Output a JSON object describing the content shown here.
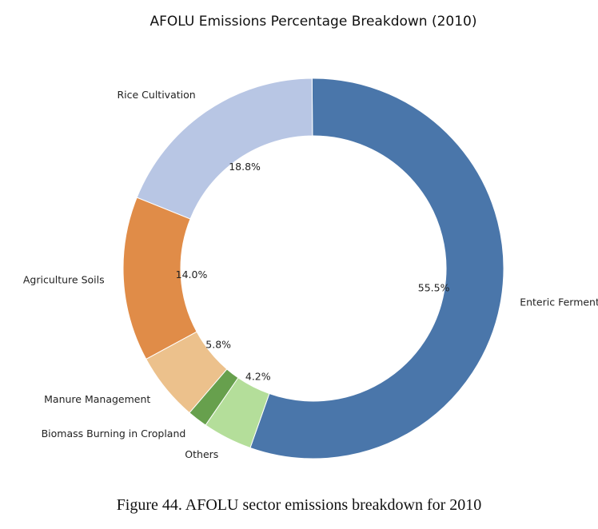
{
  "chart_data": {
    "type": "pie",
    "style": "donut",
    "title": "AFOLU Emissions Percentage Breakdown (2010)",
    "slices": [
      {
        "label": "Enteric Fermentation",
        "value": 55.5,
        "pct_label": "55.5%",
        "color": "#4a76aa"
      },
      {
        "label": "Rice Cultivation",
        "value": 18.8,
        "pct_label": "18.8%",
        "color": "#b8c6e4"
      },
      {
        "label": "Agriculture Soils",
        "value": 14.0,
        "pct_label": "14.0%",
        "color": "#e08c48"
      },
      {
        "label": "Manure Management",
        "value": 5.8,
        "pct_label": "5.8%",
        "color": "#ecc18c"
      },
      {
        "label": "Biomass Burning in Cropland",
        "value": 1.7,
        "pct_label": "",
        "color": "#67a04d"
      },
      {
        "label": "Others",
        "value": 4.2,
        "pct_label": "4.2%",
        "color": "#b4de9a"
      }
    ]
  },
  "caption": "Figure 44.  AFOLU sector emissions breakdown for 2010"
}
